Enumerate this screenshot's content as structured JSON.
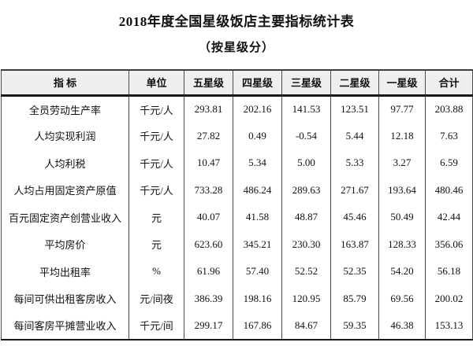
{
  "page": {
    "title": "2018年度全国星级饭店主要指标统计表",
    "subtitle": "（按星级分）"
  },
  "table": {
    "columns": [
      "指 标",
      "单位",
      "五星级",
      "四星级",
      "三星级",
      "二星级",
      "一星级",
      "合计"
    ],
    "rows": [
      [
        "全员劳动生产率",
        "千元/人",
        "293.81",
        "202.16",
        "141.53",
        "123.51",
        "97.77",
        "203.88"
      ],
      [
        "人均实现利润",
        "千元/人",
        "27.82",
        "0.49",
        "-0.54",
        "5.44",
        "12.18",
        "7.63"
      ],
      [
        "人均利税",
        "千元/人",
        "10.47",
        "5.34",
        "5.00",
        "5.33",
        "3.27",
        "6.59"
      ],
      [
        "人均占用固定资产原值",
        "千元/人",
        "733.28",
        "486.24",
        "289.63",
        "271.67",
        "193.64",
        "480.46"
      ],
      [
        "百元固定资产创营业收入",
        "元",
        "40.07",
        "41.58",
        "48.87",
        "45.46",
        "50.49",
        "42.44"
      ],
      [
        "平均房价",
        "元",
        "623.60",
        "345.21",
        "230.30",
        "163.87",
        "128.33",
        "356.06"
      ],
      [
        "平均出租率",
        "%",
        "61.96",
        "57.40",
        "52.52",
        "52.35",
        "54.20",
        "56.18"
      ],
      [
        "每间可供出租客房收入",
        "元/间夜",
        "386.39",
        "198.16",
        "120.95",
        "85.79",
        "69.56",
        "200.02"
      ],
      [
        "每间客房平摊营业收入",
        "千元/间",
        "299.17",
        "167.86",
        "84.67",
        "59.35",
        "46.38",
        "153.13"
      ]
    ],
    "colors": {
      "header_bg": "#efefef",
      "grid_line": "#4d4d4d",
      "heavy_line": "#1a1a1a",
      "text": "#111111",
      "background": "#ffffff"
    }
  }
}
